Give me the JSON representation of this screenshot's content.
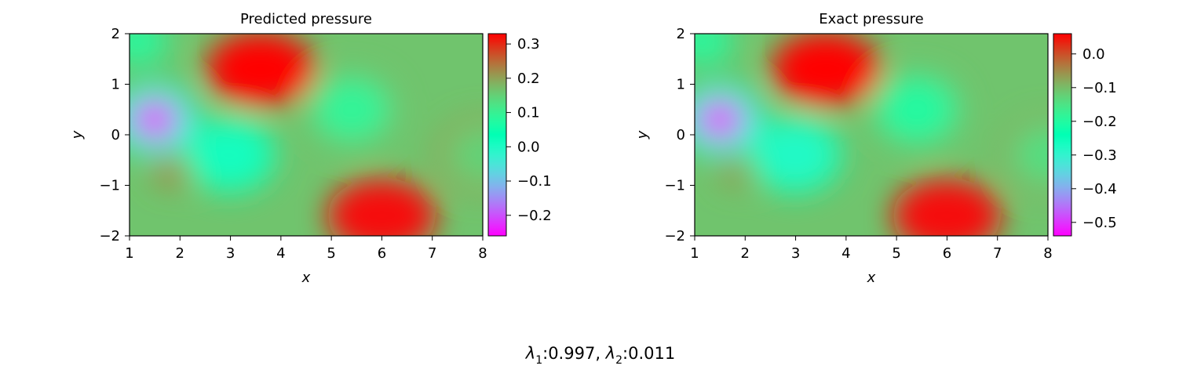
{
  "chart_data": [
    {
      "type": "heatmap",
      "title": "Predicted pressure",
      "xlabel": "x",
      "ylabel": "y",
      "xlim": [
        1,
        8
      ],
      "ylim": [
        -2,
        2
      ],
      "x_ticks": [
        "1",
        "2",
        "3",
        "4",
        "5",
        "6",
        "7",
        "8"
      ],
      "y_ticks": [
        "2",
        "1",
        "0",
        "−1",
        "−2"
      ],
      "colormap": "rainbow",
      "colorbar": {
        "range": [
          -0.26,
          0.33
        ],
        "ticks": [
          {
            "value": 0.3,
            "label": "0.3"
          },
          {
            "value": 0.2,
            "label": "0.2"
          },
          {
            "value": 0.1,
            "label": "0.1"
          },
          {
            "value": 0.0,
            "label": "0.0"
          },
          {
            "value": -0.1,
            "label": "−0.1"
          },
          {
            "value": -0.2,
            "label": "−0.2"
          }
        ]
      },
      "features": [
        {
          "kind": "min",
          "x": 1.5,
          "y": 0.3,
          "value": -0.26
        },
        {
          "kind": "max",
          "x": 3.6,
          "y": 1.3,
          "value": 0.33
        },
        {
          "kind": "max",
          "x": 6.0,
          "y": -1.6,
          "value": 0.32
        },
        {
          "kind": "low",
          "x": 3.0,
          "y": -0.4,
          "value": 0.01
        },
        {
          "kind": "low",
          "x": 5.4,
          "y": 0.5,
          "value": 0.09
        },
        {
          "kind": "low",
          "x": 8.0,
          "y": -0.4,
          "value": 0.15
        },
        {
          "kind": "high",
          "x": 1.9,
          "y": -0.7,
          "value": 0.22
        }
      ]
    },
    {
      "type": "heatmap",
      "title": "Exact pressure",
      "xlabel": "x",
      "ylabel": "y",
      "xlim": [
        1,
        8
      ],
      "ylim": [
        -2,
        2
      ],
      "x_ticks": [
        "1",
        "2",
        "3",
        "4",
        "5",
        "6",
        "7",
        "8"
      ],
      "y_ticks": [
        "2",
        "1",
        "0",
        "−1",
        "−2"
      ],
      "colormap": "rainbow",
      "colorbar": {
        "range": [
          -0.54,
          0.06
        ],
        "ticks": [
          {
            "value": 0.0,
            "label": "0.0"
          },
          {
            "value": -0.1,
            "label": "−0.1"
          },
          {
            "value": -0.2,
            "label": "−0.2"
          },
          {
            "value": -0.3,
            "label": "−0.3"
          },
          {
            "value": -0.4,
            "label": "−0.4"
          },
          {
            "value": -0.5,
            "label": "−0.5"
          }
        ]
      },
      "features": [
        {
          "kind": "min",
          "x": 1.5,
          "y": 0.3,
          "value": -0.54
        },
        {
          "kind": "max",
          "x": 3.6,
          "y": 1.3,
          "value": 0.06
        },
        {
          "kind": "max",
          "x": 6.0,
          "y": -1.6,
          "value": 0.05
        },
        {
          "kind": "low",
          "x": 3.0,
          "y": -0.4,
          "value": -0.28
        },
        {
          "kind": "low",
          "x": 5.4,
          "y": 0.5,
          "value": -0.2
        },
        {
          "kind": "low",
          "x": 8.0,
          "y": -0.4,
          "value": -0.14
        },
        {
          "kind": "high",
          "x": 1.9,
          "y": -0.7,
          "value": -0.07
        }
      ]
    }
  ],
  "caption": {
    "lambda1_value": "0.997",
    "lambda2_value": "0.011"
  }
}
